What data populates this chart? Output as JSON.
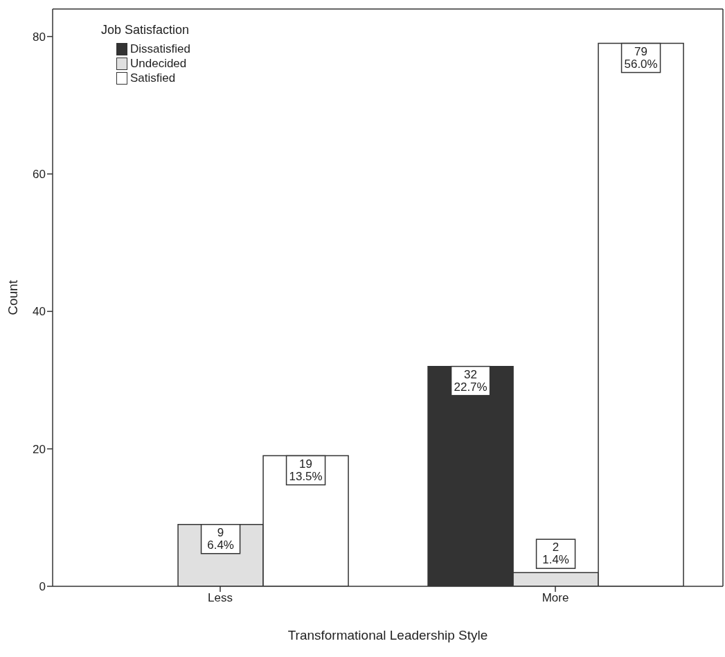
{
  "chart_data": {
    "type": "bar",
    "xlabel": "Transformational Leadership Style",
    "ylabel": "Count",
    "legend_title": "Job Satisfaction",
    "categories": [
      "Less",
      "More"
    ],
    "series": [
      {
        "name": "Dissatisfied",
        "color": "#333333",
        "values": [
          0,
          32
        ],
        "value_labels": [
          null,
          "32\n22.7%"
        ]
      },
      {
        "name": "Undecided",
        "color": "#e0e0e0",
        "values": [
          9,
          2
        ],
        "value_labels": [
          "9\n6.4%",
          "2\n1.4%"
        ]
      },
      {
        "name": "Satisfied",
        "color": "#ffffff",
        "values": [
          19,
          79
        ],
        "value_labels": [
          "19\n13.5%",
          "79\n56.0%"
        ]
      }
    ],
    "ylim": [
      0,
      84
    ],
    "yticks": [
      0,
      20,
      40,
      60,
      80
    ],
    "grid": false,
    "legend": "top left"
  }
}
